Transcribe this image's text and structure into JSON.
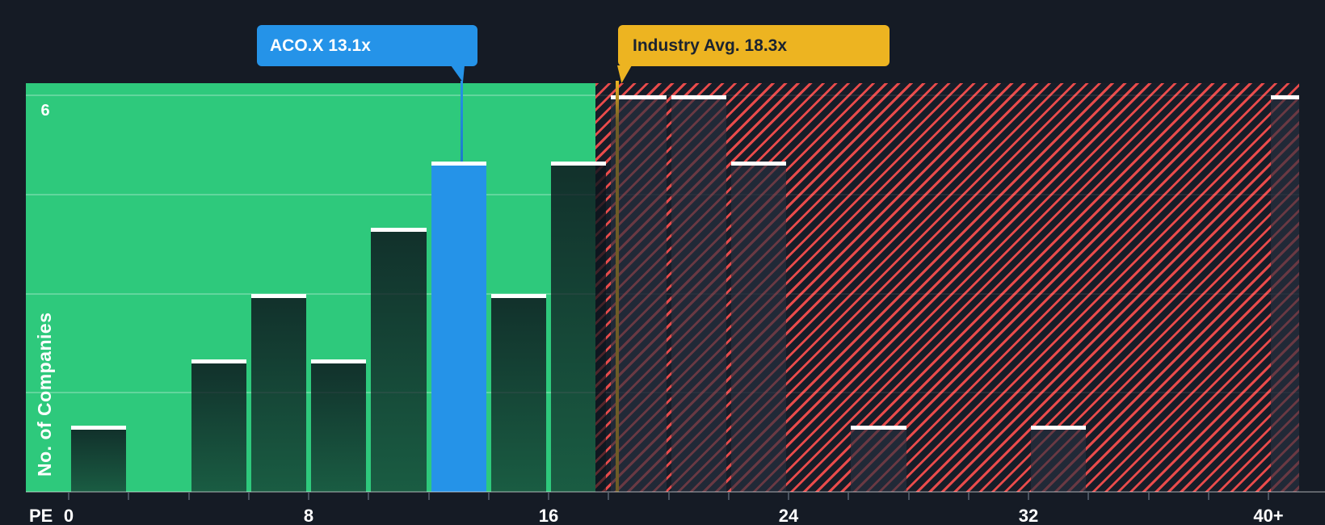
{
  "colors": {
    "background": "#151B25",
    "below_average_region": "#2EC97C",
    "above_average_hatch": "#E84B4B",
    "company_accent": "#2593E8",
    "industry_accent": "#EDB421",
    "bar_cap": "#FFFFFF"
  },
  "y_axis": {
    "title": "No. of Companies",
    "top_tick_label": "6",
    "max": 6,
    "gridline_values": [
      1.5,
      3,
      4.5,
      6
    ]
  },
  "x_axis": {
    "title": "PE",
    "tick_step": 2,
    "labels": [
      {
        "value": 0,
        "label": "0"
      },
      {
        "value": 8,
        "label": "8"
      },
      {
        "value": 16,
        "label": "16"
      },
      {
        "value": 24,
        "label": "24"
      },
      {
        "value": 32,
        "label": "32"
      },
      {
        "value": 40,
        "label": "40+"
      }
    ]
  },
  "callouts": {
    "company": {
      "label": "ACO.X 13.1x",
      "value": 13.1
    },
    "industry": {
      "label": "Industry Avg. 18.3x",
      "value": 18.3
    }
  },
  "chart_data": {
    "type": "bar",
    "title": "PE ratio histogram vs industry",
    "xlabel": "PE",
    "ylabel": "No. of Companies",
    "bin_width": 2,
    "x_range": [
      0,
      41
    ],
    "ylim": [
      0,
      6
    ],
    "grid": true,
    "regions": {
      "below_average": [
        0,
        17.5
      ],
      "above_average": [
        17.5,
        41
      ]
    },
    "markers": {
      "company_pe": 13.1,
      "industry_avg_pe": 18.3
    },
    "bars": [
      {
        "pe_start": 0,
        "pe_end": 2,
        "count": 1
      },
      {
        "pe_start": 4,
        "pe_end": 6,
        "count": 2
      },
      {
        "pe_start": 6,
        "pe_end": 8,
        "count": 3
      },
      {
        "pe_start": 8,
        "pe_end": 10,
        "count": 2
      },
      {
        "pe_start": 10,
        "pe_end": 12,
        "count": 4
      },
      {
        "pe_start": 12,
        "pe_end": 14,
        "count": 5,
        "highlight": "company"
      },
      {
        "pe_start": 14,
        "pe_end": 16,
        "count": 3
      },
      {
        "pe_start": 16,
        "pe_end": 18,
        "count": 5
      },
      {
        "pe_start": 18,
        "pe_end": 20,
        "count": 6
      },
      {
        "pe_start": 20,
        "pe_end": 22,
        "count": 6
      },
      {
        "pe_start": 22,
        "pe_end": 24,
        "count": 5
      },
      {
        "pe_start": 26,
        "pe_end": 28,
        "count": 1
      },
      {
        "pe_start": 32,
        "pe_end": 34,
        "count": 1
      },
      {
        "pe_start": 40,
        "pe_end": 41,
        "count": 6,
        "edge": true
      }
    ]
  }
}
